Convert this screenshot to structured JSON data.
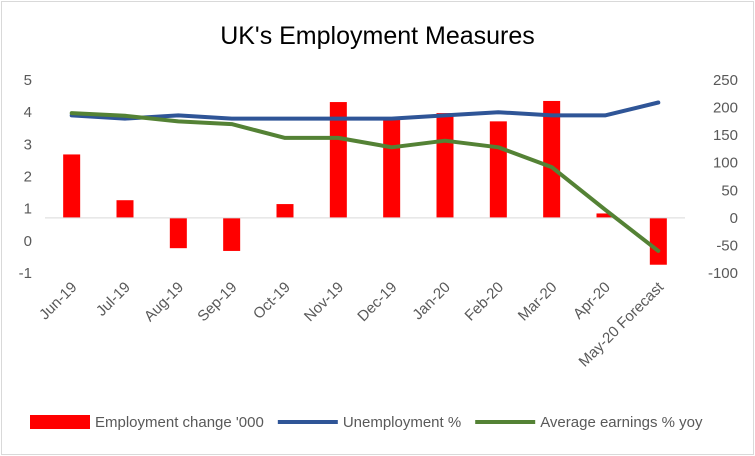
{
  "chart_data": {
    "type": "bar+line",
    "title": "UK's Employment Measures",
    "categories": [
      "Jun-19",
      "Jul-19",
      "Aug-19",
      "Sep-19",
      "Oct-19",
      "Nov-19",
      "Dec-19",
      "Jan-20",
      "Feb-20",
      "Mar-20",
      "Apr-20",
      "May-20 Forecast"
    ],
    "left_axis": {
      "ylim": [
        -1,
        5
      ],
      "ticks": [
        -1,
        0,
        1,
        2,
        3,
        4,
        5
      ]
    },
    "right_axis": {
      "ylim": [
        -100,
        250
      ],
      "ticks": [
        -100,
        -50,
        0,
        50,
        100,
        150,
        200,
        250
      ]
    },
    "series": [
      {
        "name": "Employment change '000",
        "type": "bar",
        "axis": "right",
        "color": "#ff0000",
        "values": [
          115,
          32,
          -55,
          -60,
          25,
          210,
          180,
          190,
          175,
          212,
          8,
          -85
        ]
      },
      {
        "name": "Unemployment %",
        "type": "line",
        "axis": "left",
        "color": "#2f5597",
        "values": [
          3.9,
          3.8,
          3.9,
          3.8,
          3.8,
          3.8,
          3.8,
          3.9,
          4.0,
          3.9,
          3.9,
          4.3
        ]
      },
      {
        "name": "Average earnings % yoy",
        "type": "line",
        "axis": "right",
        "color": "#548235",
        "values": [
          190,
          185,
          175,
          170,
          145,
          145,
          128,
          140,
          128,
          92,
          15,
          -60
        ]
      }
    ],
    "legend_position": "bottom",
    "grid": false
  }
}
